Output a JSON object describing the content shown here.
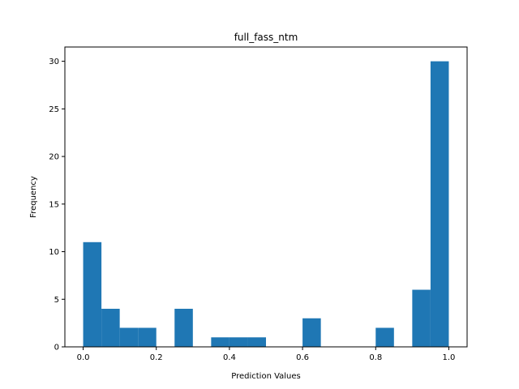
{
  "chart_data": {
    "type": "bar",
    "title": "full_fass_ntm",
    "xlabel": "Prediction Values",
    "ylabel": "Frequency",
    "bar_color": "#1f77b4",
    "xlim": [
      -0.05,
      1.05
    ],
    "ylim": [
      0,
      31.5
    ],
    "bin_width": 0.05,
    "bins": [
      {
        "x0": 0.0,
        "x1": 0.05,
        "count": 11
      },
      {
        "x0": 0.05,
        "x1": 0.1,
        "count": 4
      },
      {
        "x0": 0.1,
        "x1": 0.15,
        "count": 2
      },
      {
        "x0": 0.15,
        "x1": 0.2,
        "count": 2
      },
      {
        "x0": 0.2,
        "x1": 0.25,
        "count": 0
      },
      {
        "x0": 0.25,
        "x1": 0.3,
        "count": 4
      },
      {
        "x0": 0.3,
        "x1": 0.35,
        "count": 0
      },
      {
        "x0": 0.35,
        "x1": 0.4,
        "count": 1
      },
      {
        "x0": 0.4,
        "x1": 0.45,
        "count": 1
      },
      {
        "x0": 0.45,
        "x1": 0.5,
        "count": 1
      },
      {
        "x0": 0.5,
        "x1": 0.55,
        "count": 0
      },
      {
        "x0": 0.55,
        "x1": 0.6,
        "count": 0
      },
      {
        "x0": 0.6,
        "x1": 0.65,
        "count": 3
      },
      {
        "x0": 0.65,
        "x1": 0.7,
        "count": 0
      },
      {
        "x0": 0.7,
        "x1": 0.75,
        "count": 0
      },
      {
        "x0": 0.75,
        "x1": 0.8,
        "count": 0
      },
      {
        "x0": 0.8,
        "x1": 0.85,
        "count": 2
      },
      {
        "x0": 0.85,
        "x1": 0.9,
        "count": 0
      },
      {
        "x0": 0.9,
        "x1": 0.95,
        "count": 6
      },
      {
        "x0": 0.95,
        "x1": 1.0,
        "count": 30
      }
    ],
    "xticks": [
      {
        "value": 0.0,
        "label": "0.0"
      },
      {
        "value": 0.2,
        "label": "0.2"
      },
      {
        "value": 0.4,
        "label": "0.4"
      },
      {
        "value": 0.6,
        "label": "0.6"
      },
      {
        "value": 0.8,
        "label": "0.8"
      },
      {
        "value": 1.0,
        "label": "1.0"
      }
    ],
    "yticks": [
      {
        "value": 0,
        "label": "0"
      },
      {
        "value": 5,
        "label": "5"
      },
      {
        "value": 10,
        "label": "10"
      },
      {
        "value": 15,
        "label": "15"
      },
      {
        "value": 20,
        "label": "20"
      },
      {
        "value": 25,
        "label": "25"
      },
      {
        "value": 30,
        "label": "30"
      }
    ],
    "grid": false,
    "legend": "none"
  }
}
